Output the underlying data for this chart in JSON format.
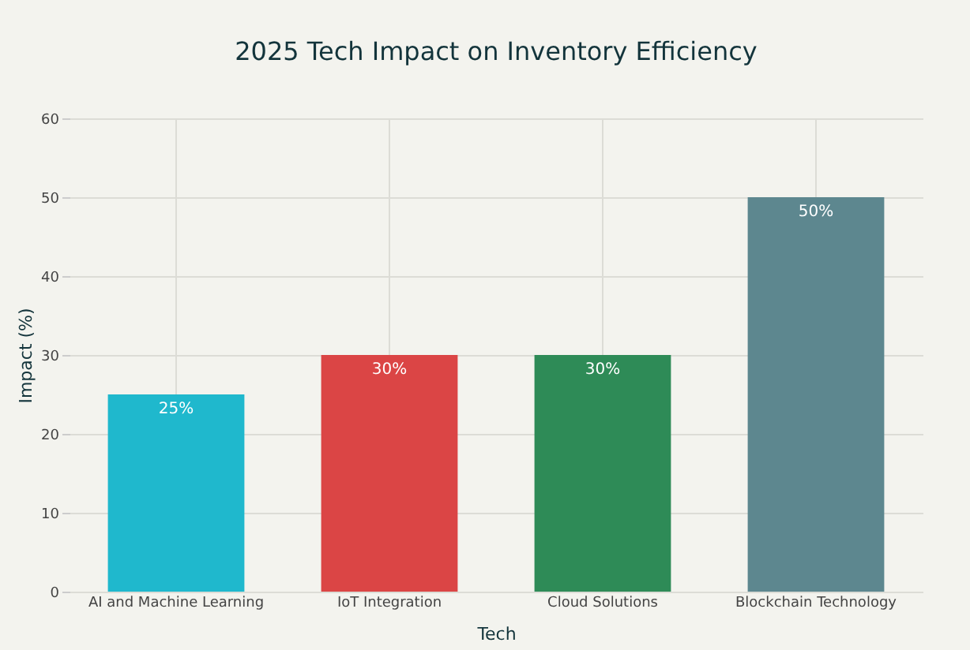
{
  "chart_data": {
    "type": "bar",
    "title": "2025 Tech Impact on Inventory Efficiency",
    "xlabel": "Tech",
    "ylabel": "Impact (%)",
    "categories": [
      "AI and Machine Learning",
      "IoT Integration",
      "Cloud Solutions",
      "Blockchain Technology"
    ],
    "values": [
      25,
      30,
      30,
      50
    ],
    "colors": [
      "#1fb8cd",
      "#db4545",
      "#2e8b57",
      "#5d878f"
    ],
    "value_labels": [
      "25%",
      "30%",
      "30%",
      "50%"
    ],
    "ylim": [
      0,
      60
    ],
    "yticks": [
      0,
      10,
      20,
      30,
      40,
      50,
      60
    ],
    "grid": true
  }
}
